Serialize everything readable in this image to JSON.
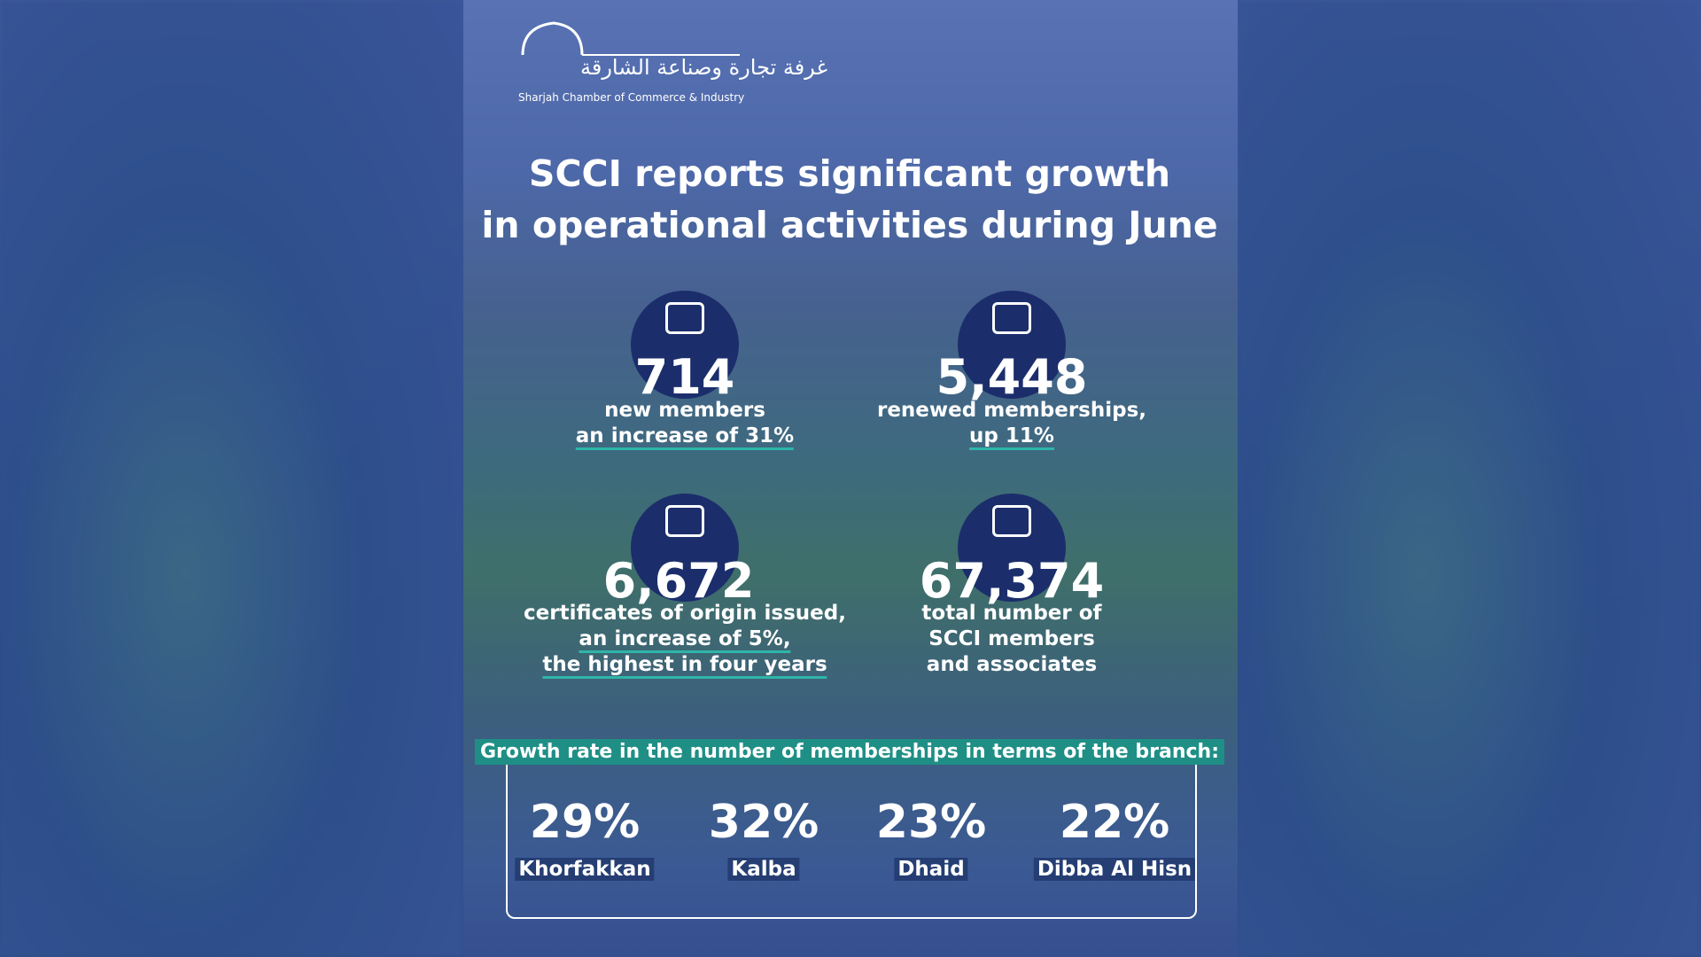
{
  "logo": {
    "arabic": "غرفة تجارة وصناعة الشارقة",
    "english": "Sharjah Chamber of Commerce & Industry"
  },
  "title": [
    "SCCI reports significant growth",
    "in operational activities during June"
  ],
  "stats": [
    {
      "value": "714",
      "lines": [
        "new members",
        "an increase of 31%"
      ]
    },
    {
      "value": "5,448",
      "lines": [
        "renewed memberships,",
        "up 11%"
      ]
    },
    {
      "value": "6,672",
      "lines": [
        "certificates of origin issued,",
        "an increase of 5%,",
        "the highest in four years"
      ]
    },
    {
      "value": "67,374",
      "lines": [
        "total number of",
        "SCCI members",
        "and associates"
      ]
    }
  ],
  "branches": {
    "heading": "Growth rate in the number of memberships in terms of the branch:",
    "items": [
      {
        "rate": "29%",
        "name": "Khorfakkan"
      },
      {
        "rate": "32%",
        "name": "Kalba"
      },
      {
        "rate": "23%",
        "name": "Dhaid"
      },
      {
        "rate": "22%",
        "name": "Dibba Al Hisn"
      }
    ]
  }
}
